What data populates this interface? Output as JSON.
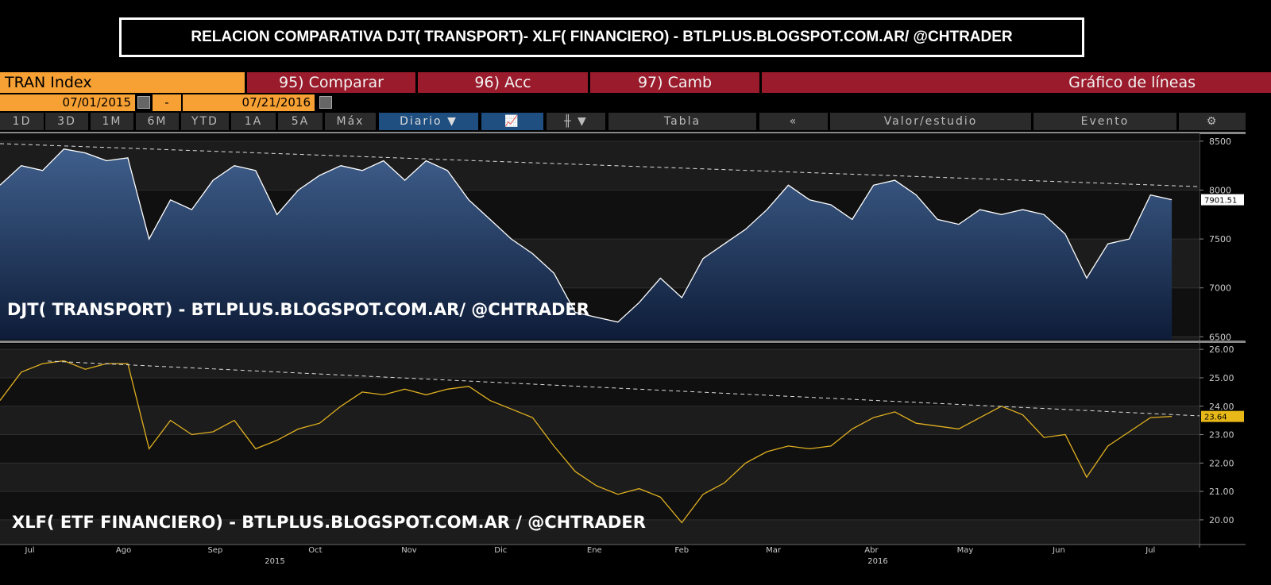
{
  "header": {
    "title": "RELACION COMPARATIVA DJT( TRANSPORT)- XLF( FINANCIERO) - BTLPLUS.BLOGSPOT.COM.AR/ @CHTRADER"
  },
  "toolbar": {
    "security": "TRAN Index",
    "buttons": [
      "95) Comparar",
      "96) Acc",
      "97) Camb"
    ],
    "chart_kind": "Gráfico de líneas",
    "start_date": "07/01/2015",
    "date_sep": "-",
    "end_date": "07/21/2016",
    "periods": [
      "1D",
      "3D",
      "1M",
      "6M",
      "YTD",
      "1A",
      "5A",
      "Máx"
    ],
    "frequency": "Diario",
    "table": "Tabla",
    "study": "Valor/estudio",
    "event": "Evento"
  },
  "chart_data": [
    {
      "type": "area",
      "annotation": "DJT( TRANSPORT) - BTLPLUS.BLOGSPOT.COM.AR/ @CHTRADER",
      "color": "#ffffff",
      "values": [
        8050,
        8250,
        8200,
        8420,
        8380,
        8300,
        8330,
        7500,
        7900,
        7800,
        8100,
        8250,
        8200,
        7750,
        8000,
        8150,
        8250,
        8200,
        8300,
        8100,
        8300,
        8200,
        7900,
        7700,
        7500,
        7350,
        7150,
        6750,
        6700,
        6650,
        6850,
        7100,
        6900,
        7300,
        7450,
        7600,
        7800,
        8050,
        7900,
        7850,
        7700,
        8050,
        8100,
        7950,
        7700,
        7650,
        7800,
        7750,
        7800,
        7750,
        7550,
        7100,
        7450,
        7500,
        7950,
        7901.51
      ],
      "xlim": [
        0,
        56.3
      ],
      "ylim": [
        6470,
        8580
      ],
      "yticks": [
        6500,
        7000,
        7500,
        8000,
        8500
      ],
      "trendline": {
        "x": [
          0,
          56.3
        ],
        "values": [
          8475,
          8035
        ]
      }
    },
    {
      "type": "line",
      "annotation": "XLF( ETF FINANCIERO) - BTLPLUS.BLOGSPOT.COM.AR / @CHTRADER",
      "color": "#e0b020",
      "values": [
        24.2,
        25.2,
        25.5,
        25.6,
        25.3,
        25.5,
        25.5,
        22.5,
        23.5,
        23.0,
        23.1,
        23.5,
        22.5,
        22.8,
        23.2,
        23.4,
        24.0,
        24.5,
        24.4,
        24.6,
        24.4,
        24.6,
        24.7,
        24.2,
        23.9,
        23.6,
        22.6,
        21.7,
        21.2,
        20.9,
        21.1,
        20.8,
        19.9,
        20.9,
        21.3,
        22.0,
        22.4,
        22.6,
        22.5,
        22.6,
        23.2,
        23.6,
        23.8,
        23.4,
        23.3,
        23.2,
        23.6,
        24.0,
        23.7,
        22.9,
        23.0,
        21.5,
        22.6,
        23.1,
        23.6,
        23.64
      ],
      "xlim": [
        0,
        56.3
      ],
      "ylim": [
        19.16,
        26.2
      ],
      "yticks": [
        {
          "value": 20,
          "label": "20.00"
        },
        {
          "value": 21,
          "label": "21.00"
        },
        {
          "value": 22,
          "label": "22.00"
        },
        {
          "value": 23,
          "label": "23.00"
        },
        {
          "value": 24,
          "label": "24.00"
        },
        {
          "value": 25,
          "label": "25.00"
        },
        {
          "value": 26,
          "label": "26.00"
        }
      ],
      "trendline": {
        "x": [
          2.24,
          56.3
        ],
        "values": [
          25.59,
          23.66
        ]
      },
      "xticks": [
        {
          "value": 1.4,
          "label": "Jul"
        },
        {
          "value": 5.8,
          "label": "Ago"
        },
        {
          "value": 10.1,
          "label": "Sep"
        },
        {
          "value": 14.8,
          "label": "Oct"
        },
        {
          "value": 19.2,
          "label": "Nov"
        },
        {
          "value": 23.5,
          "label": "Dic"
        },
        {
          "value": 27.9,
          "label": "Ene"
        },
        {
          "value": 32,
          "label": "Feb"
        },
        {
          "value": 36.3,
          "label": "Mar"
        },
        {
          "value": 40.9,
          "label": "Abr"
        },
        {
          "value": 45.3,
          "label": "May"
        },
        {
          "value": 49.7,
          "label": "Jun"
        },
        {
          "value": 54,
          "label": "Jul"
        }
      ],
      "year_ticks": [
        {
          "value": 12.9,
          "label": "2015"
        },
        {
          "value": 41.2,
          "label": "2016"
        }
      ]
    }
  ]
}
